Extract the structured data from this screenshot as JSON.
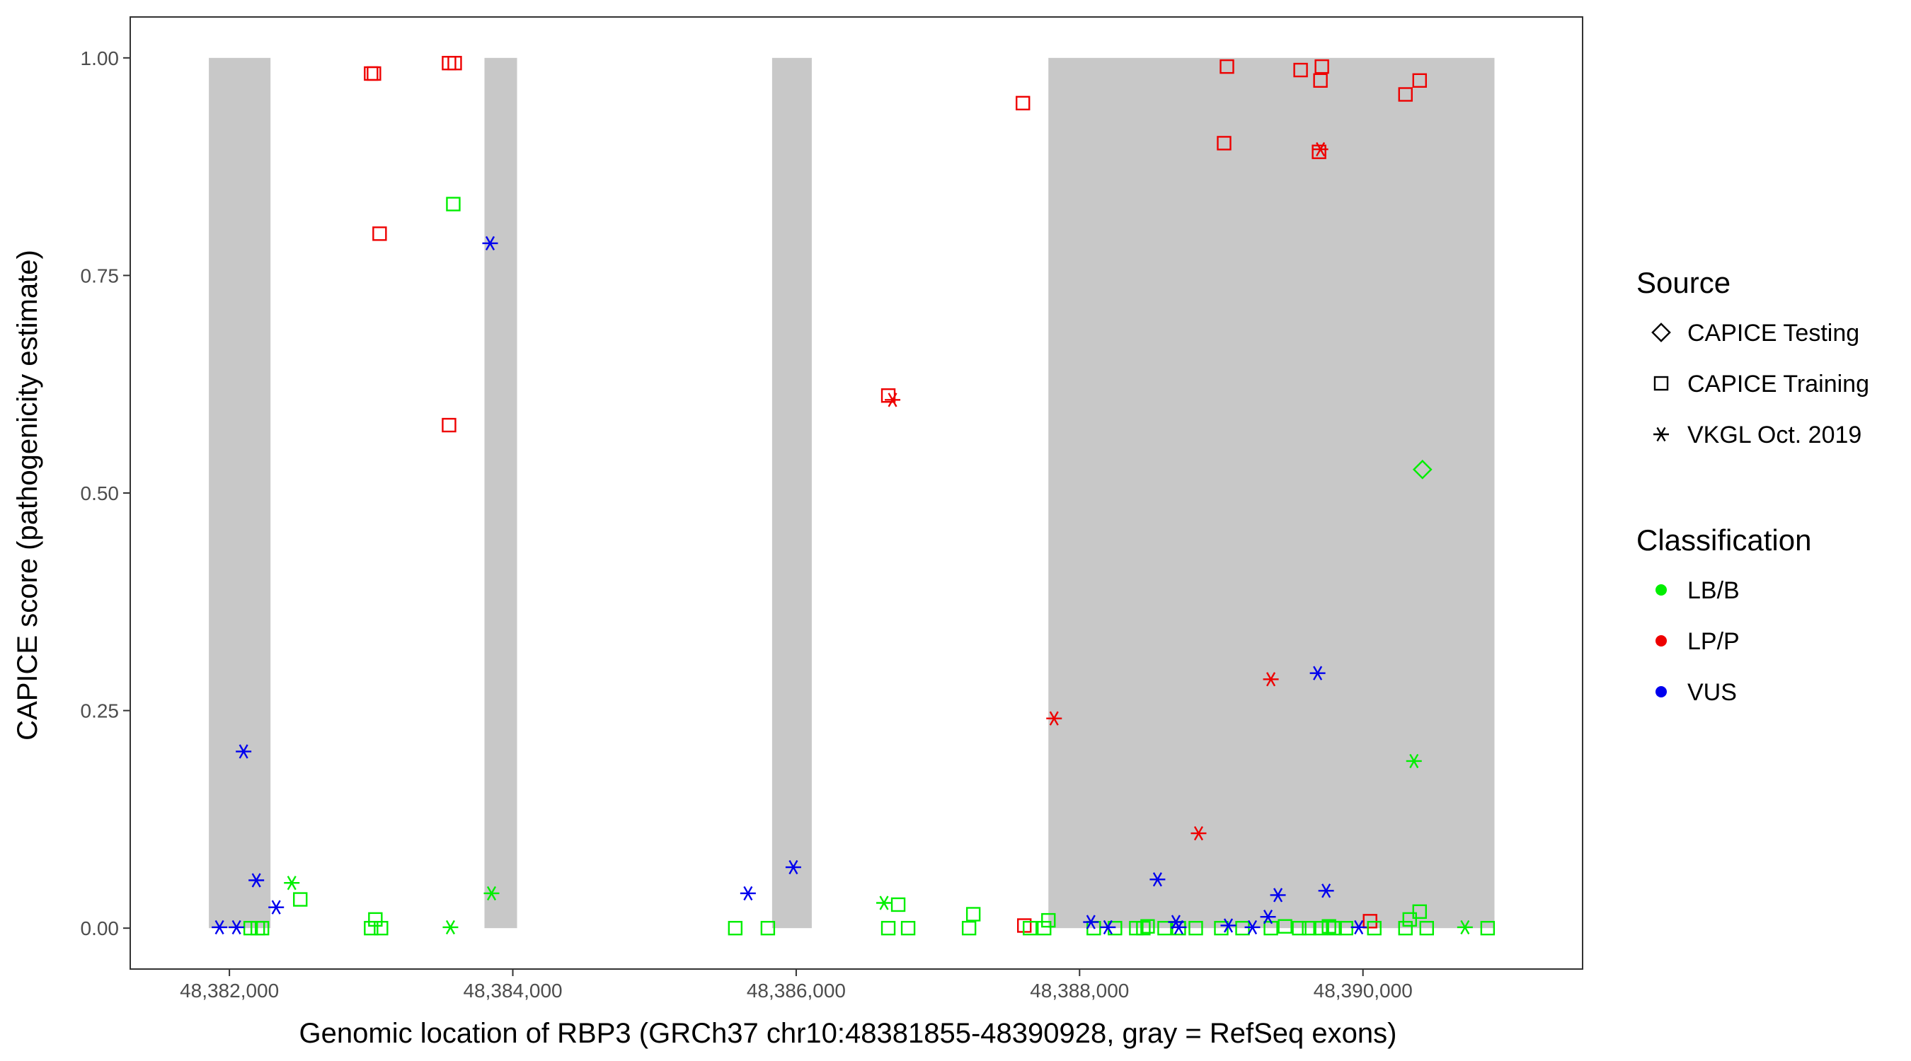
{
  "chart_data": {
    "type": "scatter",
    "title": "",
    "xlabel": "Genomic location of RBP3 (GRCh37 chr10:48381855-48390928, gray = RefSeq exons)",
    "ylabel": "CAPICE score (pathogenicity estimate)",
    "xlim": [
      48381300,
      48391550
    ],
    "ylim": [
      -0.047,
      1.047
    ],
    "x_ticks": [
      48382000,
      48384000,
      48386000,
      48388000,
      48390000
    ],
    "x_tick_labels": [
      "48,382,000",
      "48,384,000",
      "48,386,000",
      "48,388,000",
      "48,390,000"
    ],
    "y_ticks": [
      0,
      0.25,
      0.5,
      0.75,
      1.0
    ],
    "y_tick_labels": [
      "0.00",
      "0.25",
      "0.50",
      "0.75",
      "1.00"
    ],
    "grid": false,
    "legend_position": "right",
    "exons": [
      [
        48381855,
        48382290
      ],
      [
        48383800,
        48384030
      ],
      [
        48385830,
        48386110
      ],
      [
        48387780,
        48390928
      ]
    ],
    "colors": {
      "LB/B": "#00ee00",
      "LP/P": "#ee0000",
      "VUS": "#0000ee",
      "exon": "#c8c8c8"
    },
    "legends": {
      "source": {
        "title": "Source",
        "items": [
          {
            "label": "CAPICE Testing",
            "shape": "diamond"
          },
          {
            "label": "CAPICE Training",
            "shape": "square"
          },
          {
            "label": "VKGL Oct. 2019",
            "shape": "asterisk"
          }
        ]
      },
      "classification": {
        "title": "Classification",
        "items": [
          {
            "label": "LB/B",
            "color": "#00ee00"
          },
          {
            "label": "LP/P",
            "color": "#ee0000"
          },
          {
            "label": "VUS",
            "color": "#0000ee"
          }
        ]
      }
    },
    "series": [
      {
        "source": "CAPICE Training",
        "classification": "LP/P",
        "shape": "square",
        "points": [
          [
            48383000,
            0.982
          ],
          [
            48383020,
            0.982
          ],
          [
            48383550,
            0.994
          ],
          [
            48383590,
            0.994
          ],
          [
            48383060,
            0.798
          ],
          [
            48383550,
            0.578
          ],
          [
            48386650,
            0.612
          ],
          [
            48387600,
            0.948
          ],
          [
            48389020,
            0.902
          ],
          [
            48389040,
            0.99
          ],
          [
            48389560,
            0.986
          ],
          [
            48389710,
            0.99
          ],
          [
            48389700,
            0.974
          ],
          [
            48389690,
            0.892
          ],
          [
            48390300,
            0.958
          ],
          [
            48390400,
            0.974
          ],
          [
            48387610,
            0.003
          ],
          [
            48390050,
            0.008
          ]
        ]
      },
      {
        "source": "CAPICE Training",
        "classification": "LB/B",
        "shape": "square",
        "points": [
          [
            48383580,
            0.832
          ],
          [
            48382150,
            0
          ],
          [
            48382200,
            0
          ],
          [
            48382230,
            0
          ],
          [
            48382500,
            0.033
          ],
          [
            48383000,
            0
          ],
          [
            48383030,
            0.01
          ],
          [
            48383070,
            0
          ],
          [
            48385570,
            0
          ],
          [
            48385800,
            0
          ],
          [
            48386650,
            0
          ],
          [
            48386720,
            0.027
          ],
          [
            48386790,
            0
          ],
          [
            48387220,
            0
          ],
          [
            48387250,
            0.016
          ],
          [
            48387650,
            0
          ],
          [
            48387750,
            0
          ],
          [
            48387780,
            0.009
          ],
          [
            48388100,
            0
          ],
          [
            48388250,
            0
          ],
          [
            48388400,
            0
          ],
          [
            48388450,
            0
          ],
          [
            48388480,
            0.002
          ],
          [
            48388600,
            0
          ],
          [
            48388700,
            0
          ],
          [
            48388820,
            0
          ],
          [
            48389000,
            0
          ],
          [
            48389150,
            0
          ],
          [
            48389350,
            0
          ],
          [
            48389450,
            0.002
          ],
          [
            48389550,
            0
          ],
          [
            48389620,
            0
          ],
          [
            48389700,
            0
          ],
          [
            48389760,
            0.002
          ],
          [
            48389800,
            0
          ],
          [
            48389880,
            0
          ],
          [
            48390080,
            0
          ],
          [
            48390300,
            0
          ],
          [
            48390330,
            0.01
          ],
          [
            48390400,
            0.019
          ],
          [
            48390450,
            0
          ],
          [
            48390880,
            0
          ]
        ]
      },
      {
        "source": "CAPICE Testing",
        "classification": "LB/B",
        "shape": "diamond",
        "points": [
          [
            48390420,
            0.527
          ]
        ]
      },
      {
        "source": "VKGL Oct. 2019",
        "classification": "VUS",
        "shape": "asterisk",
        "points": [
          [
            48382100,
            0.203
          ],
          [
            48382190,
            0.055
          ],
          [
            48382330,
            0.024
          ],
          [
            48381930,
            0.001
          ],
          [
            48382050,
            0.001
          ],
          [
            48383840,
            0.787
          ],
          [
            48385660,
            0.04
          ],
          [
            48385980,
            0.07
          ],
          [
            48388080,
            0.007
          ],
          [
            48388200,
            0.001
          ],
          [
            48388550,
            0.056
          ],
          [
            48388680,
            0.007
          ],
          [
            48388700,
            0.001
          ],
          [
            48389050,
            0.003
          ],
          [
            48389220,
            0.001
          ],
          [
            48389330,
            0.013
          ],
          [
            48389400,
            0.038
          ],
          [
            48389680,
            0.293
          ],
          [
            48389740,
            0.043
          ],
          [
            48389970,
            0.001
          ]
        ]
      },
      {
        "source": "VKGL Oct. 2019",
        "classification": "LP/P",
        "shape": "asterisk",
        "points": [
          [
            48386680,
            0.607
          ],
          [
            48387820,
            0.241
          ],
          [
            48388840,
            0.109
          ],
          [
            48389350,
            0.286
          ],
          [
            48389700,
            0.895
          ]
        ]
      },
      {
        "source": "VKGL Oct. 2019",
        "classification": "LB/B",
        "shape": "asterisk",
        "points": [
          [
            48382440,
            0.052
          ],
          [
            48383560,
            0.001
          ],
          [
            48383850,
            0.04
          ],
          [
            48386620,
            0.029
          ],
          [
            48390360,
            0.192
          ],
          [
            48390720,
            0.001
          ]
        ]
      }
    ]
  }
}
